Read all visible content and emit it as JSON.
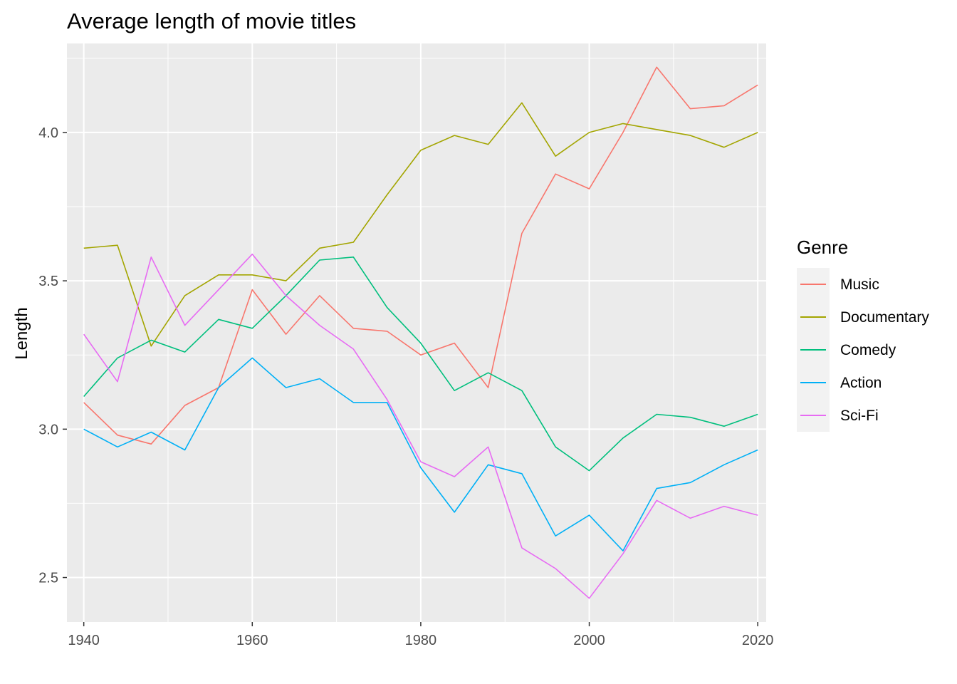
{
  "chart_data": {
    "type": "line",
    "title": "Average length of movie titles",
    "xlabel": "",
    "ylabel": "Length",
    "xlim": [
      1938,
      2021
    ],
    "ylim": [
      2.35,
      4.3
    ],
    "x_ticks": [
      1940,
      1960,
      1980,
      2000,
      2020
    ],
    "y_ticks": [
      2.5,
      3.0,
      3.5,
      4.0
    ],
    "y_tick_labels": [
      "2.5",
      "3.0",
      "3.5",
      "4.0"
    ],
    "grid": true,
    "legend": {
      "title": "Genre",
      "position": "right"
    },
    "x": [
      1940,
      1944,
      1948,
      1952,
      1956,
      1960,
      1964,
      1968,
      1972,
      1976,
      1980,
      1984,
      1988,
      1992,
      1996,
      2000,
      2004,
      2008,
      2012,
      2016,
      2020
    ],
    "series": [
      {
        "name": "Music",
        "color": "#F8766D",
        "values": [
          3.09,
          2.98,
          2.95,
          3.08,
          3.14,
          3.47,
          3.32,
          3.45,
          3.34,
          3.33,
          3.25,
          3.29,
          3.14,
          3.66,
          3.86,
          3.81,
          4.0,
          4.22,
          4.08,
          4.09,
          4.16
        ]
      },
      {
        "name": "Documentary",
        "color": "#A3A500",
        "values": [
          3.61,
          3.62,
          3.28,
          3.45,
          3.52,
          3.52,
          3.5,
          3.61,
          3.63,
          3.79,
          3.94,
          3.99,
          3.96,
          4.1,
          3.92,
          4.0,
          4.03,
          4.01,
          3.99,
          3.95,
          4.0
        ]
      },
      {
        "name": "Comedy",
        "color": "#00BF7D",
        "values": [
          3.11,
          3.24,
          3.3,
          3.26,
          3.37,
          3.34,
          3.45,
          3.57,
          3.58,
          3.41,
          3.29,
          3.13,
          3.19,
          3.13,
          2.94,
          2.86,
          2.97,
          3.05,
          3.04,
          3.01,
          3.05
        ]
      },
      {
        "name": "Action",
        "color": "#00B0F6",
        "values": [
          3.0,
          2.94,
          2.99,
          2.93,
          3.14,
          3.24,
          3.14,
          3.17,
          3.09,
          3.09,
          2.87,
          2.72,
          2.88,
          2.85,
          2.64,
          2.71,
          2.59,
          2.8,
          2.82,
          2.88,
          2.93
        ]
      },
      {
        "name": "Sci-Fi",
        "color": "#E76BF3",
        "values": [
          3.32,
          3.16,
          3.58,
          3.35,
          3.47,
          3.59,
          3.45,
          3.35,
          3.27,
          3.1,
          2.89,
          2.84,
          2.94,
          2.6,
          2.53,
          2.43,
          2.58,
          2.76,
          2.7,
          2.74,
          2.71
        ]
      }
    ],
    "style": {
      "panel_bg": "#EBEBEB",
      "grid_color": "#FFFFFF",
      "legend_key_bg": "#F2F2F2"
    }
  }
}
